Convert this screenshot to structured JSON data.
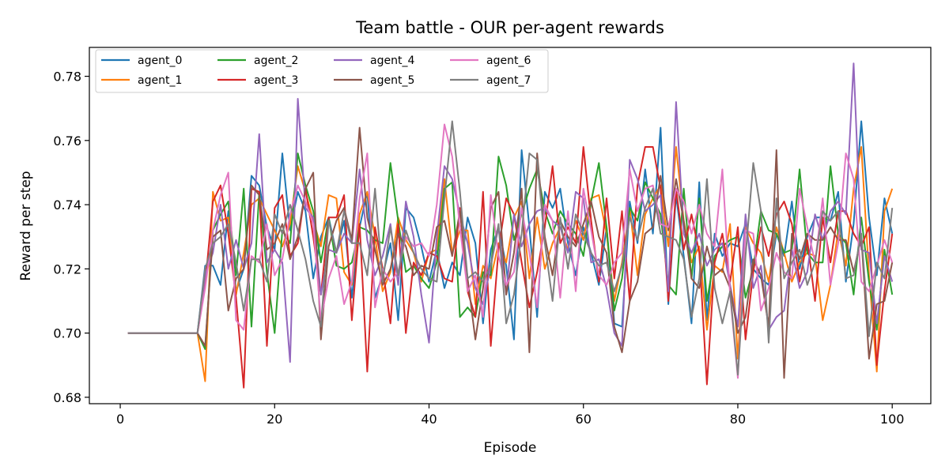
{
  "chart_data": {
    "type": "line",
    "title": "Team battle - OUR per-agent rewards",
    "xlabel": "Episode",
    "ylabel": "Reward per step",
    "xlim": [
      -4,
      105
    ],
    "ylim": [
      0.678,
      0.789
    ],
    "xticks": [
      0,
      20,
      40,
      60,
      80,
      100
    ],
    "yticks": [
      0.68,
      0.7,
      0.72,
      0.74,
      0.76,
      0.78
    ],
    "ytick_labels": [
      "0.68",
      "0.70",
      "0.72",
      "0.74",
      "0.76",
      "0.78"
    ],
    "grid": false,
    "legend_position": "top-left",
    "legend_columns": 4,
    "x": [
      1,
      2,
      3,
      4,
      5,
      6,
      7,
      8,
      9,
      10,
      11,
      12,
      13,
      14,
      15,
      16,
      17,
      18,
      19,
      20,
      21,
      22,
      23,
      24,
      25,
      26,
      27,
      28,
      29,
      30,
      31,
      32,
      33,
      34,
      35,
      36,
      37,
      38,
      39,
      40,
      41,
      42,
      43,
      44,
      45,
      46,
      47,
      48,
      49,
      50,
      51,
      52,
      53,
      54,
      55,
      56,
      57,
      58,
      59,
      60,
      61,
      62,
      63,
      64,
      65,
      66,
      67,
      68,
      69,
      70,
      71,
      72,
      73,
      74,
      75,
      76,
      77,
      78,
      79,
      80,
      81,
      82,
      83,
      84,
      85,
      86,
      87,
      88,
      89,
      90,
      91,
      92,
      93,
      94,
      95,
      96,
      97,
      98,
      99,
      100
    ],
    "series": [
      {
        "name": "agent_0",
        "color": "#1f77b4",
        "values": [
          0.7,
          0.7,
          0.7,
          0.7,
          0.7,
          0.7,
          0.7,
          0.7,
          0.7,
          0.7,
          0.721,
          0.721,
          0.715,
          0.738,
          0.713,
          0.72,
          0.749,
          0.746,
          0.733,
          0.726,
          0.756,
          0.732,
          0.744,
          0.738,
          0.717,
          0.73,
          0.736,
          0.725,
          0.735,
          0.711,
          0.733,
          0.744,
          0.711,
          0.718,
          0.728,
          0.704,
          0.739,
          0.736,
          0.727,
          0.716,
          0.726,
          0.714,
          0.722,
          0.718,
          0.736,
          0.728,
          0.703,
          0.726,
          0.733,
          0.721,
          0.698,
          0.757,
          0.733,
          0.705,
          0.744,
          0.739,
          0.745,
          0.728,
          0.718,
          0.733,
          0.725,
          0.715,
          0.733,
          0.703,
          0.702,
          0.741,
          0.728,
          0.751,
          0.731,
          0.764,
          0.709,
          0.743,
          0.724,
          0.703,
          0.747,
          0.704,
          0.731,
          0.724,
          0.728,
          0.727,
          0.734,
          0.72,
          0.717,
          0.715,
          0.731,
          0.724,
          0.741,
          0.72,
          0.73,
          0.736,
          0.736,
          0.735,
          0.744,
          0.716,
          0.734,
          0.766,
          0.736,
          0.718,
          0.742,
          0.731
        ]
      },
      {
        "name": "agent_1",
        "color": "#ff7f0e",
        "values": [
          0.7,
          0.7,
          0.7,
          0.7,
          0.7,
          0.7,
          0.7,
          0.7,
          0.7,
          0.7,
          0.685,
          0.744,
          0.735,
          0.736,
          0.712,
          0.725,
          0.74,
          0.742,
          0.737,
          0.732,
          0.727,
          0.734,
          0.752,
          0.744,
          0.735,
          0.727,
          0.743,
          0.742,
          0.719,
          0.715,
          0.737,
          0.744,
          0.73,
          0.713,
          0.719,
          0.736,
          0.729,
          0.725,
          0.716,
          0.725,
          0.726,
          0.748,
          0.725,
          0.732,
          0.732,
          0.709,
          0.721,
          0.717,
          0.728,
          0.722,
          0.736,
          0.741,
          0.717,
          0.736,
          0.72,
          0.728,
          0.733,
          0.726,
          0.735,
          0.729,
          0.742,
          0.743,
          0.731,
          0.71,
          0.722,
          0.739,
          0.718,
          0.737,
          0.742,
          0.746,
          0.727,
          0.758,
          0.735,
          0.722,
          0.727,
          0.701,
          0.721,
          0.719,
          0.734,
          0.692,
          0.733,
          0.728,
          0.725,
          0.716,
          0.733,
          0.725,
          0.716,
          0.722,
          0.725,
          0.724,
          0.704,
          0.715,
          0.732,
          0.721,
          0.745,
          0.758,
          0.718,
          0.688,
          0.738,
          0.745
        ]
      },
      {
        "name": "agent_2",
        "color": "#2ca02c",
        "values": [
          0.7,
          0.7,
          0.7,
          0.7,
          0.7,
          0.7,
          0.7,
          0.7,
          0.7,
          0.7,
          0.695,
          0.732,
          0.737,
          0.741,
          0.718,
          0.745,
          0.702,
          0.744,
          0.719,
          0.7,
          0.732,
          0.728,
          0.756,
          0.746,
          0.738,
          0.722,
          0.736,
          0.721,
          0.72,
          0.722,
          0.733,
          0.732,
          0.729,
          0.728,
          0.753,
          0.735,
          0.719,
          0.721,
          0.717,
          0.714,
          0.722,
          0.745,
          0.747,
          0.705,
          0.708,
          0.705,
          0.719,
          0.718,
          0.755,
          0.746,
          0.729,
          0.737,
          0.745,
          0.751,
          0.738,
          0.731,
          0.738,
          0.734,
          0.731,
          0.724,
          0.741,
          0.753,
          0.733,
          0.707,
          0.717,
          0.739,
          0.735,
          0.747,
          0.742,
          0.737,
          0.715,
          0.712,
          0.745,
          0.717,
          0.742,
          0.71,
          0.724,
          0.727,
          0.729,
          0.73,
          0.711,
          0.72,
          0.738,
          0.732,
          0.731,
          0.725,
          0.726,
          0.751,
          0.725,
          0.722,
          0.722,
          0.752,
          0.731,
          0.728,
          0.712,
          0.736,
          0.716,
          0.701,
          0.726,
          0.712
        ]
      },
      {
        "name": "agent_3",
        "color": "#d62728",
        "values": [
          0.7,
          0.7,
          0.7,
          0.7,
          0.7,
          0.7,
          0.7,
          0.7,
          0.7,
          0.7,
          0.715,
          0.741,
          0.746,
          0.731,
          0.711,
          0.683,
          0.745,
          0.744,
          0.696,
          0.739,
          0.743,
          0.724,
          0.728,
          0.745,
          0.73,
          0.712,
          0.736,
          0.736,
          0.743,
          0.704,
          0.734,
          0.688,
          0.733,
          0.72,
          0.703,
          0.734,
          0.7,
          0.722,
          0.718,
          0.725,
          0.724,
          0.717,
          0.716,
          0.739,
          0.713,
          0.705,
          0.744,
          0.696,
          0.726,
          0.742,
          0.737,
          0.722,
          0.708,
          0.719,
          0.733,
          0.752,
          0.728,
          0.733,
          0.728,
          0.758,
          0.735,
          0.716,
          0.742,
          0.717,
          0.738,
          0.71,
          0.746,
          0.758,
          0.758,
          0.745,
          0.71,
          0.745,
          0.726,
          0.737,
          0.725,
          0.684,
          0.722,
          0.731,
          0.716,
          0.733,
          0.698,
          0.719,
          0.733,
          0.724,
          0.737,
          0.741,
          0.734,
          0.716,
          0.729,
          0.71,
          0.736,
          0.722,
          0.738,
          0.738,
          0.731,
          0.727,
          0.733,
          0.69,
          0.713,
          0.731
        ]
      },
      {
        "name": "agent_4",
        "color": "#9467bd",
        "values": [
          0.7,
          0.7,
          0.7,
          0.7,
          0.7,
          0.7,
          0.7,
          0.7,
          0.7,
          0.7,
          0.718,
          0.725,
          0.74,
          0.72,
          0.729,
          0.72,
          0.728,
          0.762,
          0.722,
          0.726,
          0.722,
          0.691,
          0.773,
          0.739,
          0.736,
          0.712,
          0.726,
          0.725,
          0.731,
          0.728,
          0.751,
          0.729,
          0.718,
          0.724,
          0.734,
          0.715,
          0.741,
          0.73,
          0.712,
          0.697,
          0.73,
          0.752,
          0.748,
          0.737,
          0.728,
          0.714,
          0.709,
          0.721,
          0.733,
          0.712,
          0.737,
          0.727,
          0.734,
          0.738,
          0.739,
          0.735,
          0.733,
          0.725,
          0.744,
          0.742,
          0.722,
          0.723,
          0.714,
          0.7,
          0.696,
          0.754,
          0.748,
          0.738,
          0.74,
          0.743,
          0.713,
          0.772,
          0.731,
          0.725,
          0.731,
          0.721,
          0.726,
          0.728,
          0.715,
          0.702,
          0.737,
          0.714,
          0.721,
          0.701,
          0.705,
          0.707,
          0.726,
          0.714,
          0.719,
          0.737,
          0.729,
          0.738,
          0.741,
          0.737,
          0.784,
          0.726,
          0.725,
          0.703,
          0.724,
          0.716
        ]
      },
      {
        "name": "agent_5",
        "color": "#8c564b",
        "values": [
          0.7,
          0.7,
          0.7,
          0.7,
          0.7,
          0.7,
          0.7,
          0.7,
          0.7,
          0.7,
          0.696,
          0.73,
          0.732,
          0.707,
          0.717,
          0.72,
          0.746,
          0.743,
          0.726,
          0.728,
          0.734,
          0.723,
          0.73,
          0.745,
          0.75,
          0.698,
          0.727,
          0.735,
          0.739,
          0.729,
          0.764,
          0.736,
          0.726,
          0.715,
          0.72,
          0.731,
          0.727,
          0.718,
          0.721,
          0.72,
          0.733,
          0.735,
          0.724,
          0.738,
          0.717,
          0.698,
          0.714,
          0.739,
          0.744,
          0.712,
          0.725,
          0.745,
          0.694,
          0.756,
          0.73,
          0.718,
          0.735,
          0.73,
          0.727,
          0.734,
          0.741,
          0.73,
          0.725,
          0.702,
          0.694,
          0.71,
          0.716,
          0.731,
          0.733,
          0.749,
          0.732,
          0.748,
          0.735,
          0.717,
          0.714,
          0.727,
          0.718,
          0.72,
          0.714,
          0.7,
          0.705,
          0.723,
          0.718,
          0.702,
          0.757,
          0.686,
          0.731,
          0.723,
          0.731,
          0.729,
          0.729,
          0.733,
          0.729,
          0.729,
          0.719,
          0.73,
          0.692,
          0.709,
          0.71,
          0.722
        ]
      },
      {
        "name": "agent_6",
        "color": "#e377c2",
        "values": [
          0.7,
          0.7,
          0.7,
          0.7,
          0.7,
          0.7,
          0.7,
          0.7,
          0.7,
          0.7,
          0.714,
          0.732,
          0.743,
          0.75,
          0.704,
          0.701,
          0.724,
          0.722,
          0.734,
          0.718,
          0.723,
          0.737,
          0.746,
          0.741,
          0.734,
          0.704,
          0.717,
          0.724,
          0.709,
          0.716,
          0.742,
          0.756,
          0.708,
          0.72,
          0.716,
          0.719,
          0.73,
          0.727,
          0.728,
          0.724,
          0.74,
          0.765,
          0.755,
          0.733,
          0.713,
          0.718,
          0.705,
          0.743,
          0.724,
          0.715,
          0.719,
          0.739,
          0.725,
          0.708,
          0.74,
          0.735,
          0.711,
          0.738,
          0.713,
          0.745,
          0.732,
          0.718,
          0.715,
          0.722,
          0.725,
          0.751,
          0.738,
          0.745,
          0.746,
          0.734,
          0.733,
          0.745,
          0.741,
          0.731,
          0.74,
          0.731,
          0.727,
          0.751,
          0.712,
          0.686,
          0.732,
          0.731,
          0.707,
          0.714,
          0.725,
          0.719,
          0.717,
          0.745,
          0.733,
          0.722,
          0.742,
          0.715,
          0.728,
          0.756,
          0.748,
          0.716,
          0.713,
          0.721,
          0.729,
          0.722
        ]
      },
      {
        "name": "agent_7",
        "color": "#7f7f7f",
        "values": [
          0.7,
          0.7,
          0.7,
          0.7,
          0.7,
          0.7,
          0.7,
          0.7,
          0.7,
          0.7,
          0.72,
          0.728,
          0.73,
          0.734,
          0.722,
          0.707,
          0.723,
          0.723,
          0.716,
          0.737,
          0.731,
          0.74,
          0.732,
          0.723,
          0.71,
          0.702,
          0.735,
          0.725,
          0.738,
          0.728,
          0.728,
          0.718,
          0.745,
          0.716,
          0.733,
          0.718,
          0.732,
          0.725,
          0.72,
          0.717,
          0.716,
          0.742,
          0.766,
          0.744,
          0.717,
          0.719,
          0.716,
          0.721,
          0.734,
          0.703,
          0.712,
          0.731,
          0.756,
          0.754,
          0.728,
          0.71,
          0.736,
          0.72,
          0.737,
          0.731,
          0.725,
          0.721,
          0.722,
          0.713,
          0.721,
          0.736,
          0.729,
          0.739,
          0.745,
          0.731,
          0.73,
          0.729,
          0.723,
          0.705,
          0.717,
          0.748,
          0.714,
          0.703,
          0.713,
          0.687,
          0.724,
          0.753,
          0.738,
          0.697,
          0.742,
          0.717,
          0.722,
          0.726,
          0.715,
          0.722,
          0.738,
          0.735,
          0.738,
          0.717,
          0.718,
          0.731,
          0.699,
          0.722,
          0.717,
          0.739
        ]
      }
    ]
  }
}
